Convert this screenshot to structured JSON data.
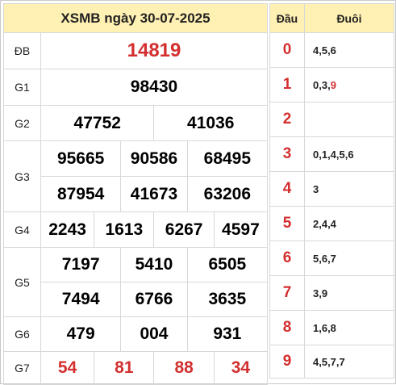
{
  "title": "XSMB ngày 30-07-2025",
  "prizes": {
    "db": {
      "label": "ĐB",
      "numbers": [
        "14819"
      ]
    },
    "g1": {
      "label": "G1",
      "numbers": [
        "98430"
      ]
    },
    "g2": {
      "label": "G2",
      "numbers": [
        "47752",
        "41036"
      ]
    },
    "g3": {
      "label": "G3",
      "numbers": [
        "95665",
        "90586",
        "68495",
        "87954",
        "41673",
        "63206"
      ]
    },
    "g4": {
      "label": "G4",
      "numbers": [
        "2243",
        "1613",
        "6267",
        "4597"
      ]
    },
    "g5": {
      "label": "G5",
      "numbers": [
        "7197",
        "5410",
        "6505",
        "7494",
        "6766",
        "3635"
      ]
    },
    "g6": {
      "label": "G6",
      "numbers": [
        "479",
        "004",
        "931"
      ]
    },
    "g7": {
      "label": "G7",
      "numbers": [
        "54",
        "81",
        "88",
        "34"
      ]
    }
  },
  "loto": {
    "head_label": "Đầu",
    "tail_label": "Đuôi",
    "rows": [
      {
        "dau": "0",
        "duoi_pre": "4,5,6",
        "duoi_hl": ""
      },
      {
        "dau": "1",
        "duoi_pre": "0,3,",
        "duoi_hl": "9"
      },
      {
        "dau": "2",
        "duoi_pre": "",
        "duoi_hl": ""
      },
      {
        "dau": "3",
        "duoi_pre": "0,1,4,5,6",
        "duoi_hl": ""
      },
      {
        "dau": "4",
        "duoi_pre": "3",
        "duoi_hl": ""
      },
      {
        "dau": "5",
        "duoi_pre": "2,4,4",
        "duoi_hl": ""
      },
      {
        "dau": "6",
        "duoi_pre": "5,6,7",
        "duoi_hl": ""
      },
      {
        "dau": "7",
        "duoi_pre": "3,9",
        "duoi_hl": ""
      },
      {
        "dau": "8",
        "duoi_pre": "1,6,8",
        "duoi_hl": ""
      },
      {
        "dau": "9",
        "duoi_pre": "4,5,7,7",
        "duoi_hl": ""
      }
    ]
  },
  "colors": {
    "header_bg": "#fff0b3",
    "accent": "#d32f2f",
    "border": "#d8d8d8"
  }
}
